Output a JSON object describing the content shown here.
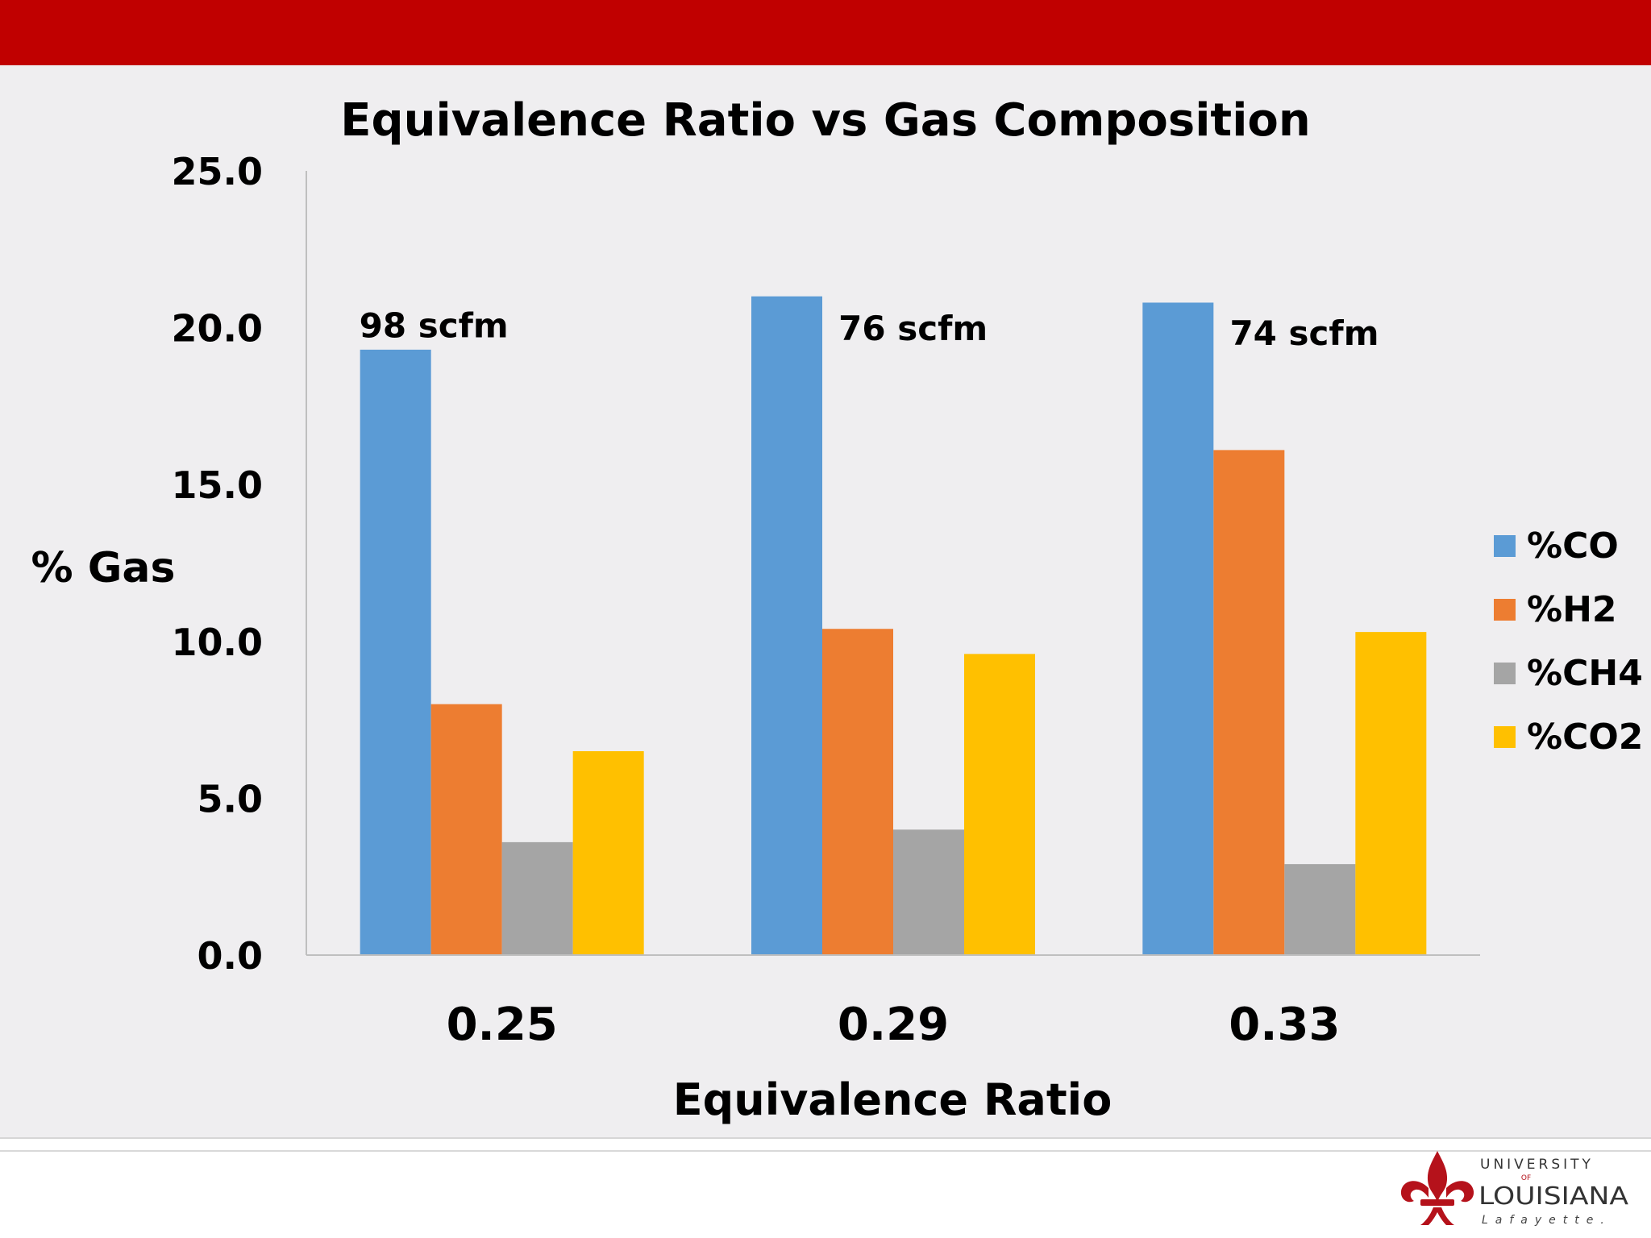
{
  "slide": {
    "band_color": "#c00000",
    "panel_color": "#efeef0"
  },
  "chart_data": {
    "type": "bar",
    "title": "Equivalence Ratio vs Gas Composition",
    "xlabel": "Equivalence Ratio",
    "ylabel": "% Gas",
    "categories": [
      "0.25",
      "0.29",
      "0.33"
    ],
    "ylim": [
      0,
      25
    ],
    "yticks": [
      "0.0",
      "5.0",
      "10.0",
      "15.0",
      "20.0",
      "25.0"
    ],
    "grid": false,
    "legend_position": "right",
    "series": [
      {
        "name": "%CO",
        "color": "#5b9bd5",
        "values": [
          19.3,
          21.0,
          20.8
        ]
      },
      {
        "name": "%H2",
        "color": "#ed7d31",
        "values": [
          8.0,
          10.4,
          16.1
        ]
      },
      {
        "name": "%CH4",
        "color": "#a5a5a5",
        "values": [
          3.6,
          4.0,
          2.9
        ]
      },
      {
        "name": "%CO2",
        "color": "#ffc000",
        "values": [
          6.5,
          9.6,
          10.3
        ]
      }
    ],
    "annotations": [
      "98 scfm",
      "76 scfm",
      "74 scfm"
    ]
  },
  "logo": {
    "line1": "UNIVERSITY",
    "line2": "OF",
    "line3": "LOUISIANA",
    "line4": "Lafayette.",
    "color": "#b5121b"
  }
}
